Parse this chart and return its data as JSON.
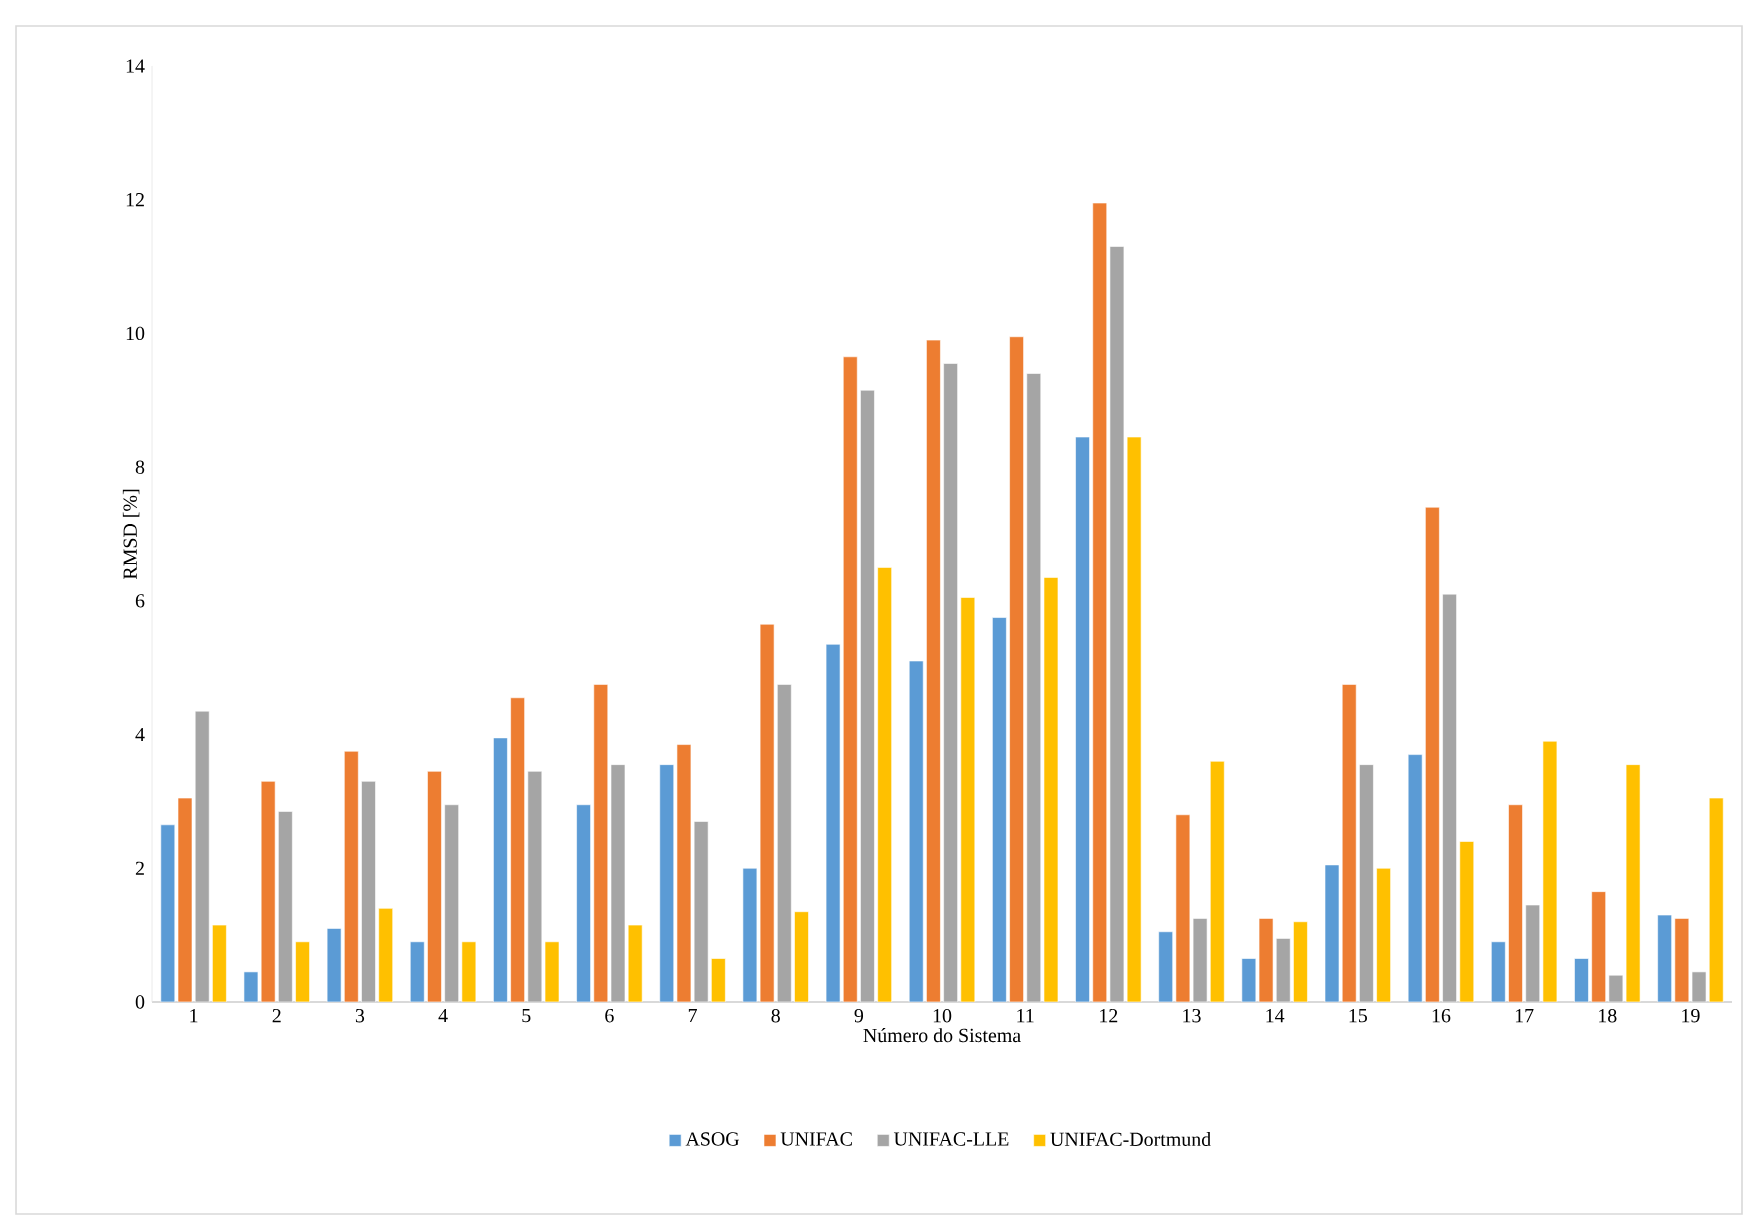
{
  "chart_data": {
    "type": "bar",
    "xlabel": "Número do Sistema",
    "ylabel": "RMSD [%]",
    "categories": [
      "1",
      "2",
      "3",
      "4",
      "5",
      "6",
      "7",
      "8",
      "9",
      "10",
      "11",
      "12",
      "13",
      "14",
      "15",
      "16",
      "17",
      "18",
      "19"
    ],
    "series": [
      {
        "name": "ASOG",
        "color": "#5b9bd5",
        "values": [
          2.65,
          0.45,
          1.1,
          0.9,
          3.95,
          2.95,
          3.55,
          2.0,
          5.35,
          5.1,
          5.75,
          8.45,
          1.05,
          0.65,
          2.05,
          3.7,
          0.9,
          0.65,
          1.3
        ]
      },
      {
        "name": "UNIFAC",
        "color": "#ed7d31",
        "values": [
          3.05,
          3.3,
          3.75,
          3.45,
          4.55,
          4.75,
          3.85,
          5.65,
          9.65,
          9.9,
          9.95,
          11.95,
          2.8,
          1.25,
          4.75,
          7.4,
          2.95,
          1.65,
          1.25
        ]
      },
      {
        "name": "UNIFAC-LLE",
        "color": "#a5a5a5",
        "values": [
          4.35,
          2.85,
          3.3,
          2.95,
          3.45,
          3.55,
          2.7,
          4.75,
          9.15,
          9.55,
          9.4,
          11.3,
          1.25,
          0.95,
          3.55,
          6.1,
          1.45,
          0.4,
          0.45
        ]
      },
      {
        "name": "UNIFAC-Dortmund",
        "color": "#ffc000",
        "values": [
          1.15,
          0.9,
          1.4,
          0.9,
          0.9,
          1.15,
          0.65,
          1.35,
          6.5,
          6.05,
          6.35,
          8.45,
          3.6,
          1.2,
          2.0,
          2.4,
          3.9,
          3.55,
          3.05
        ]
      }
    ],
    "ylim": [
      0,
      14
    ],
    "yticks": [
      0,
      2,
      4,
      6,
      8,
      10,
      12,
      14
    ],
    "grid": false,
    "legend": "bottom"
  }
}
